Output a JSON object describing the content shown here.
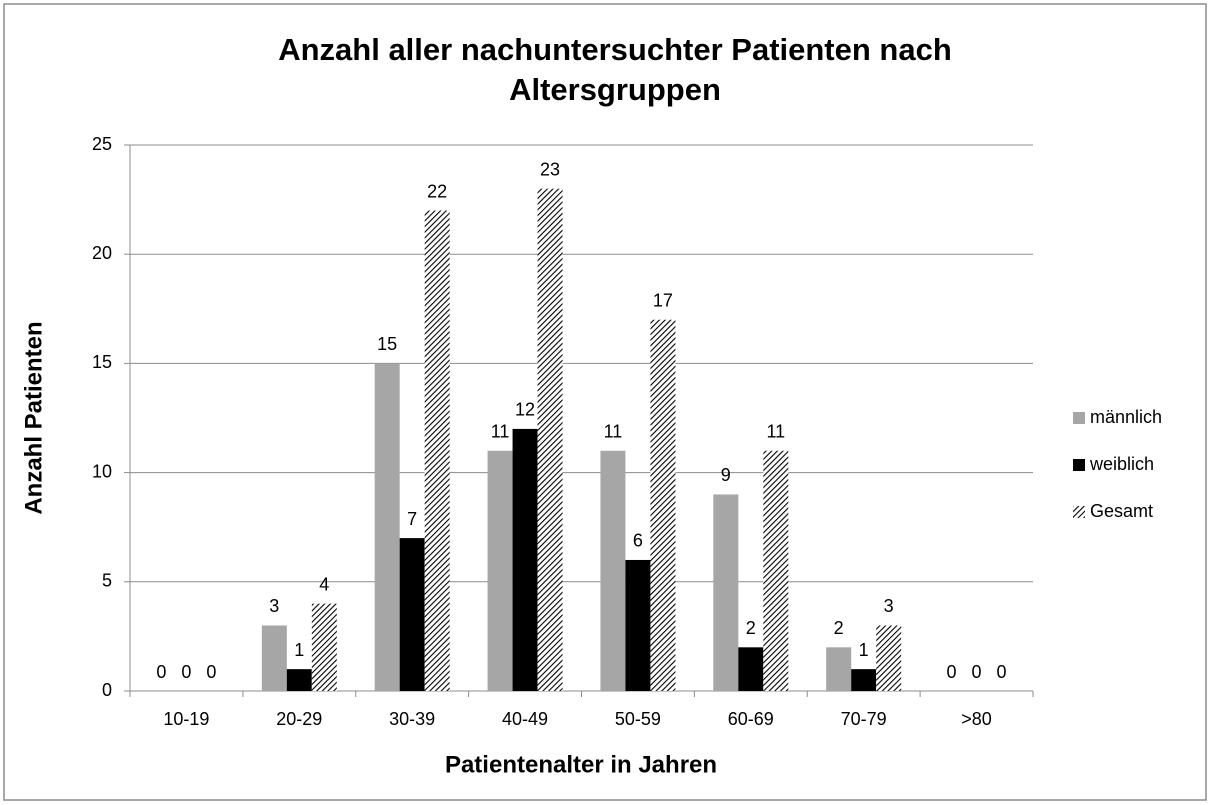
{
  "chart_data": {
    "type": "bar",
    "title": "Anzahl aller nachuntersuchter Patienten nach Altersgruppen",
    "x_label": "Patientenalter in Jahren",
    "y_label": "Anzahl Patienten",
    "categories": [
      "10-19",
      "20-29",
      "30-39",
      "40-49",
      "50-59",
      "60-69",
      "70-79",
      ">80"
    ],
    "series": [
      {
        "name": "männlich",
        "color": "#a6a6a6",
        "values": [
          0,
          3,
          15,
          11,
          11,
          9,
          2,
          0
        ]
      },
      {
        "name": "weiblich",
        "color": "#000000",
        "values": [
          0,
          1,
          7,
          12,
          6,
          2,
          1,
          0
        ]
      },
      {
        "name": "Gesamt",
        "color": "#000000",
        "hatch": true,
        "values": [
          0,
          4,
          22,
          23,
          17,
          11,
          3,
          0
        ]
      }
    ],
    "ylim": [
      0,
      25
    ],
    "yticks": [
      0,
      5,
      10,
      15,
      20,
      25
    ],
    "grid": true,
    "legend": "right"
  }
}
